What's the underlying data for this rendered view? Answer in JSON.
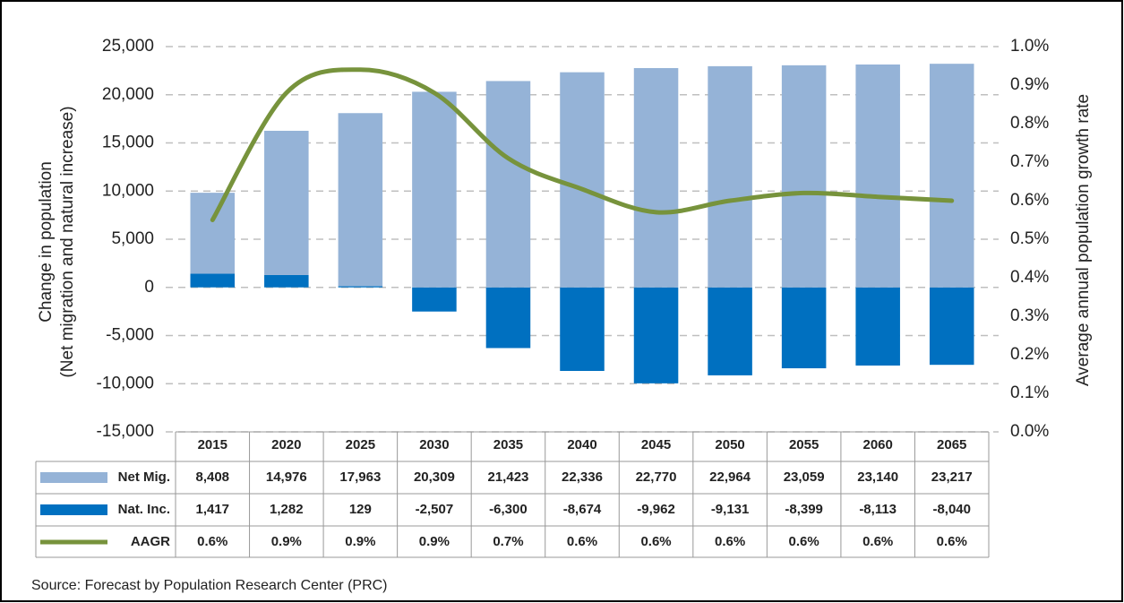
{
  "chart_data": {
    "type": "bar-line-table",
    "y_label": [
      "Change in population",
      "(Net migration and natural increase)"
    ],
    "y2_label": "Average annual population growth rate",
    "source": "Source: Forecast by Population Research Center (PRC)",
    "categories": [
      "2015",
      "2020",
      "2025",
      "2030",
      "2035",
      "2040",
      "2045",
      "2050",
      "2055",
      "2060",
      "2065"
    ],
    "series": [
      {
        "name": "Net Mig.",
        "color": "#95b3d7",
        "kind": "bar",
        "values": [
          8408,
          14976,
          17963,
          20309,
          21423,
          22336,
          22770,
          22964,
          23059,
          23140,
          23217
        ],
        "value_labels": [
          "8,408",
          "14,976",
          "17,963",
          "20,309",
          "21,423",
          "22,336",
          "22,770",
          "22,964",
          "23,059",
          "23,140",
          "23,217"
        ]
      },
      {
        "name": "Nat. Inc.",
        "color": "#0070c0",
        "kind": "bar",
        "values": [
          1417,
          1282,
          129,
          -2507,
          -6300,
          -8674,
          -9962,
          -9131,
          -8399,
          -8113,
          -8040
        ],
        "value_labels": [
          "1,417",
          "1,282",
          "129",
          "-2,507",
          "-6,300",
          "-8,674",
          "-9,962",
          "-9,131",
          "-8,399",
          "-8,113",
          "-8,040"
        ]
      },
      {
        "name": "AAGR",
        "color": "#77933c",
        "kind": "line",
        "axis": "y2",
        "values": [
          0.55,
          0.88,
          0.94,
          0.88,
          0.71,
          0.63,
          0.57,
          0.6,
          0.62,
          0.61,
          0.6
        ],
        "value_labels": [
          "0.6%",
          "0.9%",
          "0.9%",
          "0.9%",
          "0.7%",
          "0.6%",
          "0.6%",
          "0.6%",
          "0.6%",
          "0.6%",
          "0.6%"
        ]
      }
    ],
    "ylim": [
      -15000,
      25000
    ],
    "yticks": [
      {
        "value": -15000,
        "label": "-15,000"
      },
      {
        "value": -10000,
        "label": "-10,000"
      },
      {
        "value": -5000,
        "label": "-5,000"
      },
      0,
      {
        "value": 5000,
        "label": "5,000"
      },
      {
        "value": 10000,
        "label": "10,000"
      },
      {
        "value": 15000,
        "label": "15,000"
      },
      {
        "value": 20000,
        "label": "20,000"
      },
      {
        "value": 25000,
        "label": "25,000"
      }
    ],
    "y2lim": [
      0,
      1.0
    ],
    "y2ticks": [
      {
        "value": 0,
        "label": "0.0%"
      },
      {
        "value": 0.1,
        "label": "0.1%"
      },
      {
        "value": 0.2,
        "label": "0.2%"
      },
      {
        "value": 0.3,
        "label": "0.3%"
      },
      {
        "value": 0.4,
        "label": "0.4%"
      },
      {
        "value": 0.5,
        "label": "0.5%"
      },
      {
        "value": 0.6,
        "label": "0.6%"
      },
      {
        "value": 0.7,
        "label": "0.7%"
      },
      {
        "value": 0.8,
        "label": "0.8%"
      },
      {
        "value": 0.9,
        "label": "0.9%"
      },
      {
        "value": 1.0,
        "label": "1.0%"
      }
    ],
    "grid": true
  }
}
